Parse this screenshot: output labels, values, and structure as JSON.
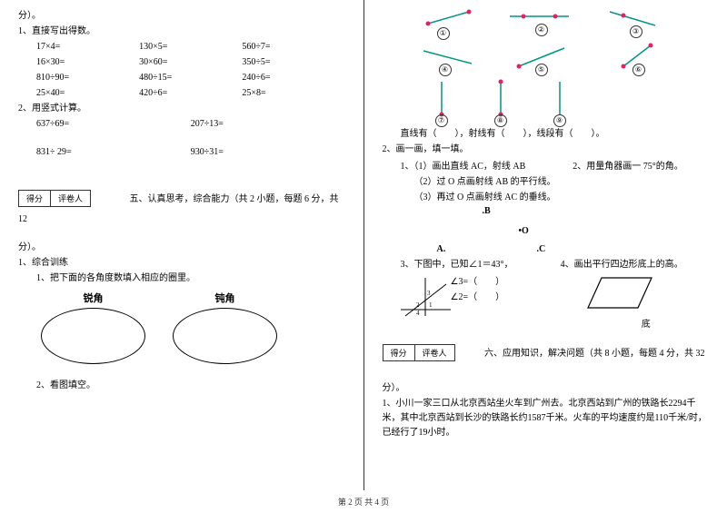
{
  "left": {
    "fen_end": "分）。",
    "q1_title": "1、直接写出得数。",
    "calc_rows": [
      [
        "17×4=",
        "130×5=",
        "560÷7="
      ],
      [
        "16×30=",
        "30×60=",
        "350÷5="
      ],
      [
        "810÷90=",
        "480÷15=",
        "240÷6="
      ],
      [
        "25×40=",
        "420÷6=",
        "25×8="
      ]
    ],
    "q2_title": "2、用竖式计算。",
    "vert_rows": [
      [
        "637÷69=",
        "207÷13="
      ],
      [
        "831÷ 29=",
        "930÷31="
      ]
    ],
    "score_a": "得分",
    "score_b": "评卷人",
    "sec5_title": "五、认真思考，综合能力（共 2 小题，每题 6 分，共 12",
    "sec5_end": "分）。",
    "q5_1": "1、综合训练",
    "q5_1_1": "1、把下面的各角度数填入相应的圈里。",
    "oval1": "锐角",
    "oval2": "钝角",
    "q5_2": "2、看图填空。"
  },
  "right": {
    "seg_labels": [
      "①",
      "②",
      "③",
      "④",
      "⑤",
      "⑥",
      "⑦",
      "⑧",
      "⑨"
    ],
    "seg_text": "直线有（　　），射线有（　　），线段有（　　）。",
    "q2_title": "2、画一画，填一填。",
    "q2_1_1": "1、（1）画出直线 AC，射线 AB",
    "q2_1_2": "（2）过 O 点画射线 AB 的平行线。",
    "q2_1_3": "（3）再过 O 点画射线 AC 的垂线。",
    "q2_right": "2、用量角器画一 75°的角。",
    "ptB": ".B",
    "ptO": "•O",
    "ptA": "A.",
    "ptC": ".C",
    "q3_title": "3、下图中，已知∠1＝43°，",
    "q3_a3": "∠3=（　　）",
    "q3_a2": "∠2=（　　）",
    "q4_title": "4、画出平行四边形底上的高。",
    "para_label": "底",
    "score_a": "得分",
    "score_b": "评卷人",
    "sec6_title": "六、应用知识，解决问题（共 8 小题，每题 4 分，共 32",
    "sec6_end": "分）。",
    "q6_1": "1、小川一家三口从北京西站坐火车到广州去。北京西站到广州的铁路长2294千米，其中北京西站到长沙的铁路长约1587千米。火车的平均速度约是110千米/时，已经行了19小时。"
  },
  "footer": "第 2 页 共 4 页",
  "colors": {
    "pink": "#e91e63",
    "teal": "#009688"
  }
}
